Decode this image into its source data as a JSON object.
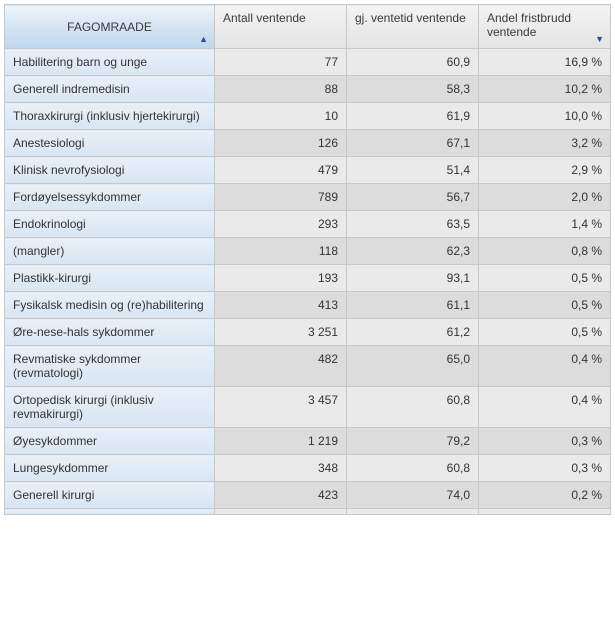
{
  "table": {
    "columns": [
      {
        "label": "FAGOMRAADE",
        "align": "left",
        "sort": "asc"
      },
      {
        "label": "Antall ventende",
        "align": "right",
        "sort": null
      },
      {
        "label": "gj. ventetid ventende",
        "align": "right",
        "sort": null
      },
      {
        "label": "Andel fristbrudd ventende",
        "align": "right",
        "sort": "desc"
      }
    ],
    "rows": [
      {
        "label": "Habilitering barn og unge",
        "antall": "77",
        "gjvt": "60,9",
        "andel": "16,9 %"
      },
      {
        "label": "Generell indremedisin",
        "antall": "88",
        "gjvt": "58,3",
        "andel": "10,2 %"
      },
      {
        "label": "Thoraxkirurgi (inklusiv hjertekirurgi)",
        "antall": "10",
        "gjvt": "61,9",
        "andel": "10,0 %"
      },
      {
        "label": "Anestesiologi",
        "antall": "126",
        "gjvt": "67,1",
        "andel": "3,2 %"
      },
      {
        "label": "Klinisk nevrofysiologi",
        "antall": "479",
        "gjvt": "51,4",
        "andel": "2,9 %"
      },
      {
        "label": "Fordøyelsessykdommer",
        "antall": "789",
        "gjvt": "56,7",
        "andel": "2,0 %"
      },
      {
        "label": "Endokrinologi",
        "antall": "293",
        "gjvt": "63,5",
        "andel": "1,4 %"
      },
      {
        "label": "(mangler)",
        "antall": "118",
        "gjvt": "62,3",
        "andel": "0,8 %"
      },
      {
        "label": "Plastikk-kirurgi",
        "antall": "193",
        "gjvt": "93,1",
        "andel": "0,5 %"
      },
      {
        "label": "Fysikalsk medisin og (re)habilitering",
        "antall": "413",
        "gjvt": "61,1",
        "andel": "0,5 %"
      },
      {
        "label": "Øre-nese-hals sykdommer",
        "antall": "3 251",
        "gjvt": "61,2",
        "andel": "0,5 %"
      },
      {
        "label": "Revmatiske sykdommer (revmatologi)",
        "antall": "482",
        "gjvt": "65,0",
        "andel": "0,4 %"
      },
      {
        "label": "Ortopedisk kirurgi (inklusiv revmakirurgi)",
        "antall": "3 457",
        "gjvt": "60,8",
        "andel": "0,4 %"
      },
      {
        "label": "Øyesykdommer",
        "antall": "1 219",
        "gjvt": "79,2",
        "andel": "0,3 %"
      },
      {
        "label": "Lungesykdommer",
        "antall": "348",
        "gjvt": "60,8",
        "andel": "0,3 %"
      },
      {
        "label": "Generell kirurgi",
        "antall": "423",
        "gjvt": "74,0",
        "andel": "0,2 %"
      }
    ],
    "header_bg_rowhead": "#d5e4f2",
    "header_bg_col": "#e4e4e4",
    "rowhead_bg": "#e0ecf6",
    "row_bg_even": "#eaeaea",
    "row_bg_odd": "#dcdcdc",
    "border_color": "#c8c8c8",
    "font_size_pt": 9,
    "sort_asc_glyph": "▲",
    "sort_desc_glyph": "▼"
  }
}
